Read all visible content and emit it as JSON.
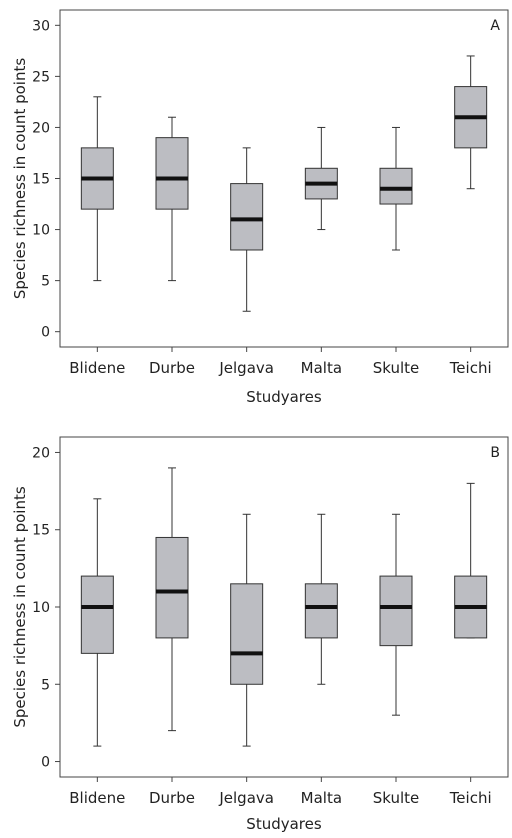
{
  "chart_data": [
    {
      "type": "box",
      "panel_label": "A",
      "xlabel": "Studyares",
      "ylabel": "Species richness in count points",
      "ylim": [
        -1.5,
        31.5
      ],
      "yticks": [
        "0",
        "5",
        "10",
        "15",
        "20",
        "25",
        "30"
      ],
      "grid": false,
      "categories": [
        "Blidene",
        "Durbe",
        "Jelgava",
        "Malta",
        "Skulte",
        "Teichi"
      ],
      "stats": [
        {
          "min": 5,
          "q1": 12,
          "median": 15,
          "q3": 18,
          "max": 23
        },
        {
          "min": 5,
          "q1": 12,
          "median": 15,
          "q3": 19,
          "max": 21
        },
        {
          "min": 2,
          "q1": 8,
          "median": 11,
          "q3": 14.5,
          "max": 18
        },
        {
          "min": 10,
          "q1": 13,
          "median": 14.5,
          "q3": 16,
          "max": 20
        },
        {
          "min": 8,
          "q1": 12.5,
          "median": 14,
          "q3": 16,
          "max": 20
        },
        {
          "min": 14,
          "q1": 18,
          "median": 21,
          "q3": 24,
          "max": 27
        }
      ]
    },
    {
      "type": "box",
      "panel_label": "B",
      "xlabel": "Studyares",
      "ylabel": "Species richness in count points",
      "ylim": [
        -1,
        21
      ],
      "yticks": [
        "0",
        "5",
        "10",
        "15",
        "20"
      ],
      "grid": false,
      "categories": [
        "Blidene",
        "Durbe",
        "Jelgava",
        "Malta",
        "Skulte",
        "Teichi"
      ],
      "stats": [
        {
          "min": 1,
          "q1": 7,
          "median": 10,
          "q3": 12,
          "max": 17
        },
        {
          "min": 2,
          "q1": 8,
          "median": 11,
          "q3": 14.5,
          "max": 19
        },
        {
          "min": 1,
          "q1": 5,
          "median": 7,
          "q3": 11.5,
          "max": 16
        },
        {
          "min": 5,
          "q1": 8,
          "median": 10,
          "q3": 11.5,
          "max": 16
        },
        {
          "min": 3,
          "q1": 7.5,
          "median": 10,
          "q3": 12,
          "max": 16
        },
        {
          "min": 8,
          "q1": 8,
          "median": 10,
          "q3": 12,
          "max": 18
        }
      ]
    }
  ]
}
